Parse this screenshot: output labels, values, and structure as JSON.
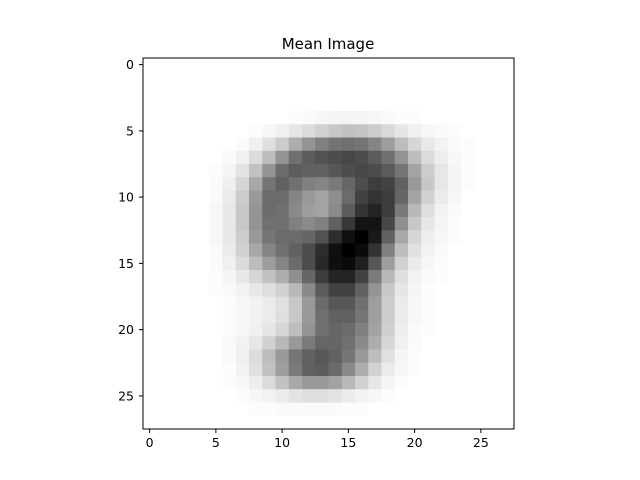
{
  "chart_data": {
    "type": "heatmap",
    "title": "Mean Image",
    "xlabel": "",
    "ylabel": "",
    "colormap": "gray_r",
    "rows": 28,
    "cols": 28,
    "xlim": [
      -0.5,
      27.5
    ],
    "ylim": [
      27.5,
      -0.5
    ],
    "x_ticks": [
      0,
      5,
      10,
      15,
      20,
      25
    ],
    "y_ticks": [
      0,
      5,
      10,
      15,
      20,
      25
    ],
    "x_tick_labels": [
      "0",
      "5",
      "10",
      "15",
      "20",
      "25"
    ],
    "y_tick_labels": [
      "0",
      "5",
      "10",
      "15",
      "20",
      "25"
    ],
    "grid": false,
    "values_note_scale": "0 = white, 1 = black",
    "values": [
      [
        0,
        0,
        0,
        0,
        0,
        0,
        0,
        0,
        0,
        0,
        0,
        0,
        0,
        0,
        0,
        0,
        0,
        0,
        0,
        0,
        0,
        0,
        0,
        0,
        0,
        0,
        0,
        0
      ],
      [
        0,
        0,
        0,
        0,
        0,
        0,
        0,
        0,
        0,
        0,
        0,
        0,
        0,
        0,
        0,
        0,
        0,
        0,
        0,
        0,
        0,
        0,
        0,
        0,
        0,
        0,
        0,
        0
      ],
      [
        0,
        0,
        0,
        0,
        0,
        0,
        0,
        0,
        0,
        0,
        0,
        0,
        0,
        0,
        0,
        0,
        0,
        0,
        0,
        0,
        0,
        0,
        0,
        0,
        0,
        0,
        0,
        0
      ],
      [
        0,
        0,
        0,
        0,
        0,
        0,
        0,
        0,
        0,
        0,
        0,
        0,
        0,
        0,
        0,
        0,
        0,
        0,
        0,
        0,
        0,
        0,
        0,
        0,
        0,
        0,
        0,
        0
      ],
      [
        0,
        0,
        0,
        0,
        0,
        0,
        0,
        0,
        0,
        0,
        0,
        0.01,
        0.02,
        0.03,
        0.04,
        0.04,
        0.04,
        0.03,
        0.02,
        0.01,
        0.01,
        0,
        0,
        0,
        0,
        0,
        0,
        0
      ],
      [
        0,
        0,
        0,
        0,
        0,
        0,
        0,
        0,
        0.01,
        0.03,
        0.06,
        0.1,
        0.14,
        0.18,
        0.22,
        0.24,
        0.23,
        0.2,
        0.15,
        0.1,
        0.06,
        0.03,
        0.02,
        0.01,
        0,
        0,
        0,
        0
      ],
      [
        0,
        0,
        0,
        0,
        0,
        0,
        0,
        0.02,
        0.06,
        0.12,
        0.2,
        0.32,
        0.42,
        0.5,
        0.55,
        0.56,
        0.54,
        0.48,
        0.38,
        0.26,
        0.16,
        0.09,
        0.05,
        0.02,
        0.01,
        0,
        0,
        0
      ],
      [
        0,
        0,
        0,
        0,
        0,
        0,
        0.02,
        0.06,
        0.14,
        0.26,
        0.42,
        0.56,
        0.64,
        0.68,
        0.7,
        0.72,
        0.7,
        0.64,
        0.56,
        0.42,
        0.26,
        0.14,
        0.07,
        0.03,
        0.01,
        0,
        0,
        0
      ],
      [
        0,
        0,
        0,
        0,
        0,
        0.01,
        0.04,
        0.11,
        0.24,
        0.42,
        0.58,
        0.64,
        0.62,
        0.62,
        0.66,
        0.7,
        0.72,
        0.7,
        0.64,
        0.54,
        0.36,
        0.2,
        0.1,
        0.04,
        0.01,
        0,
        0,
        0
      ],
      [
        0,
        0,
        0,
        0,
        0,
        0.02,
        0.06,
        0.16,
        0.34,
        0.54,
        0.62,
        0.56,
        0.5,
        0.48,
        0.52,
        0.6,
        0.7,
        0.76,
        0.74,
        0.62,
        0.4,
        0.22,
        0.1,
        0.04,
        0.01,
        0,
        0,
        0
      ],
      [
        0,
        0,
        0,
        0,
        0,
        0.02,
        0.08,
        0.2,
        0.4,
        0.58,
        0.58,
        0.48,
        0.4,
        0.36,
        0.44,
        0.58,
        0.74,
        0.8,
        0.76,
        0.6,
        0.36,
        0.18,
        0.08,
        0.03,
        0,
        0,
        0,
        0
      ],
      [
        0,
        0,
        0,
        0,
        0,
        0.03,
        0.09,
        0.22,
        0.42,
        0.58,
        0.56,
        0.46,
        0.38,
        0.36,
        0.46,
        0.64,
        0.8,
        0.86,
        0.76,
        0.52,
        0.28,
        0.13,
        0.05,
        0.02,
        0,
        0,
        0,
        0
      ],
      [
        0,
        0,
        0,
        0,
        0,
        0.03,
        0.09,
        0.22,
        0.42,
        0.56,
        0.56,
        0.5,
        0.46,
        0.5,
        0.62,
        0.78,
        0.92,
        0.92,
        0.72,
        0.44,
        0.22,
        0.1,
        0.04,
        0.01,
        0,
        0,
        0,
        0
      ],
      [
        0,
        0,
        0,
        0,
        0,
        0.03,
        0.09,
        0.2,
        0.4,
        0.54,
        0.58,
        0.58,
        0.6,
        0.68,
        0.82,
        0.94,
        1.0,
        0.9,
        0.62,
        0.34,
        0.16,
        0.07,
        0.03,
        0.01,
        0,
        0,
        0,
        0
      ],
      [
        0,
        0,
        0,
        0,
        0,
        0.02,
        0.08,
        0.18,
        0.34,
        0.48,
        0.56,
        0.62,
        0.7,
        0.82,
        0.94,
        1.0,
        0.96,
        0.8,
        0.5,
        0.26,
        0.12,
        0.05,
        0.02,
        0,
        0,
        0,
        0,
        0
      ],
      [
        0,
        0,
        0,
        0,
        0,
        0.02,
        0.06,
        0.14,
        0.26,
        0.38,
        0.48,
        0.58,
        0.7,
        0.84,
        0.94,
        0.96,
        0.88,
        0.66,
        0.38,
        0.18,
        0.08,
        0.03,
        0.01,
        0,
        0,
        0,
        0,
        0
      ],
      [
        0,
        0,
        0,
        0,
        0,
        0.01,
        0.04,
        0.09,
        0.16,
        0.24,
        0.32,
        0.44,
        0.6,
        0.76,
        0.86,
        0.86,
        0.74,
        0.52,
        0.28,
        0.13,
        0.05,
        0.02,
        0.01,
        0,
        0,
        0,
        0,
        0
      ],
      [
        0,
        0,
        0,
        0,
        0,
        0.01,
        0.02,
        0.05,
        0.09,
        0.13,
        0.18,
        0.28,
        0.46,
        0.64,
        0.74,
        0.74,
        0.62,
        0.42,
        0.22,
        0.1,
        0.04,
        0.01,
        0,
        0,
        0,
        0,
        0,
        0
      ],
      [
        0,
        0,
        0,
        0,
        0,
        0,
        0.01,
        0.03,
        0.05,
        0.08,
        0.12,
        0.22,
        0.4,
        0.58,
        0.66,
        0.66,
        0.56,
        0.38,
        0.2,
        0.08,
        0.03,
        0.01,
        0,
        0,
        0,
        0,
        0,
        0
      ],
      [
        0,
        0,
        0,
        0,
        0,
        0,
        0.01,
        0.03,
        0.05,
        0.08,
        0.13,
        0.22,
        0.4,
        0.56,
        0.62,
        0.62,
        0.54,
        0.38,
        0.2,
        0.08,
        0.03,
        0.01,
        0,
        0,
        0,
        0,
        0,
        0
      ],
      [
        0,
        0,
        0,
        0,
        0,
        0,
        0.01,
        0.03,
        0.06,
        0.1,
        0.16,
        0.26,
        0.42,
        0.56,
        0.6,
        0.58,
        0.5,
        0.36,
        0.19,
        0.07,
        0.02,
        0.01,
        0,
        0,
        0,
        0,
        0,
        0
      ],
      [
        0,
        0,
        0,
        0,
        0,
        0,
        0.02,
        0.05,
        0.1,
        0.18,
        0.28,
        0.4,
        0.52,
        0.6,
        0.6,
        0.56,
        0.46,
        0.32,
        0.16,
        0.06,
        0.02,
        0,
        0,
        0,
        0,
        0,
        0,
        0
      ],
      [
        0,
        0,
        0,
        0,
        0,
        0,
        0.02,
        0.06,
        0.14,
        0.26,
        0.4,
        0.54,
        0.62,
        0.66,
        0.62,
        0.54,
        0.4,
        0.26,
        0.12,
        0.04,
        0.01,
        0,
        0,
        0,
        0,
        0,
        0,
        0
      ],
      [
        0,
        0,
        0,
        0,
        0,
        0,
        0.01,
        0.05,
        0.12,
        0.24,
        0.38,
        0.52,
        0.62,
        0.64,
        0.58,
        0.46,
        0.32,
        0.18,
        0.08,
        0.03,
        0.01,
        0,
        0,
        0,
        0,
        0,
        0,
        0
      ],
      [
        0,
        0,
        0,
        0,
        0,
        0,
        0.01,
        0.03,
        0.07,
        0.14,
        0.24,
        0.34,
        0.4,
        0.4,
        0.36,
        0.28,
        0.18,
        0.1,
        0.04,
        0.01,
        0,
        0,
        0,
        0,
        0,
        0,
        0,
        0
      ],
      [
        0,
        0,
        0,
        0,
        0,
        0,
        0,
        0.01,
        0.03,
        0.05,
        0.08,
        0.11,
        0.13,
        0.13,
        0.11,
        0.08,
        0.05,
        0.03,
        0.01,
        0,
        0,
        0,
        0,
        0,
        0,
        0,
        0,
        0
      ],
      [
        0,
        0,
        0,
        0,
        0,
        0,
        0,
        0,
        0.01,
        0.01,
        0.02,
        0.02,
        0.02,
        0.02,
        0.02,
        0.01,
        0.01,
        0,
        0,
        0,
        0,
        0,
        0,
        0,
        0,
        0,
        0,
        0
      ],
      [
        0,
        0,
        0,
        0,
        0,
        0,
        0,
        0,
        0,
        0,
        0,
        0,
        0,
        0,
        0,
        0,
        0,
        0,
        0,
        0,
        0,
        0,
        0,
        0,
        0,
        0,
        0,
        0
      ]
    ]
  }
}
